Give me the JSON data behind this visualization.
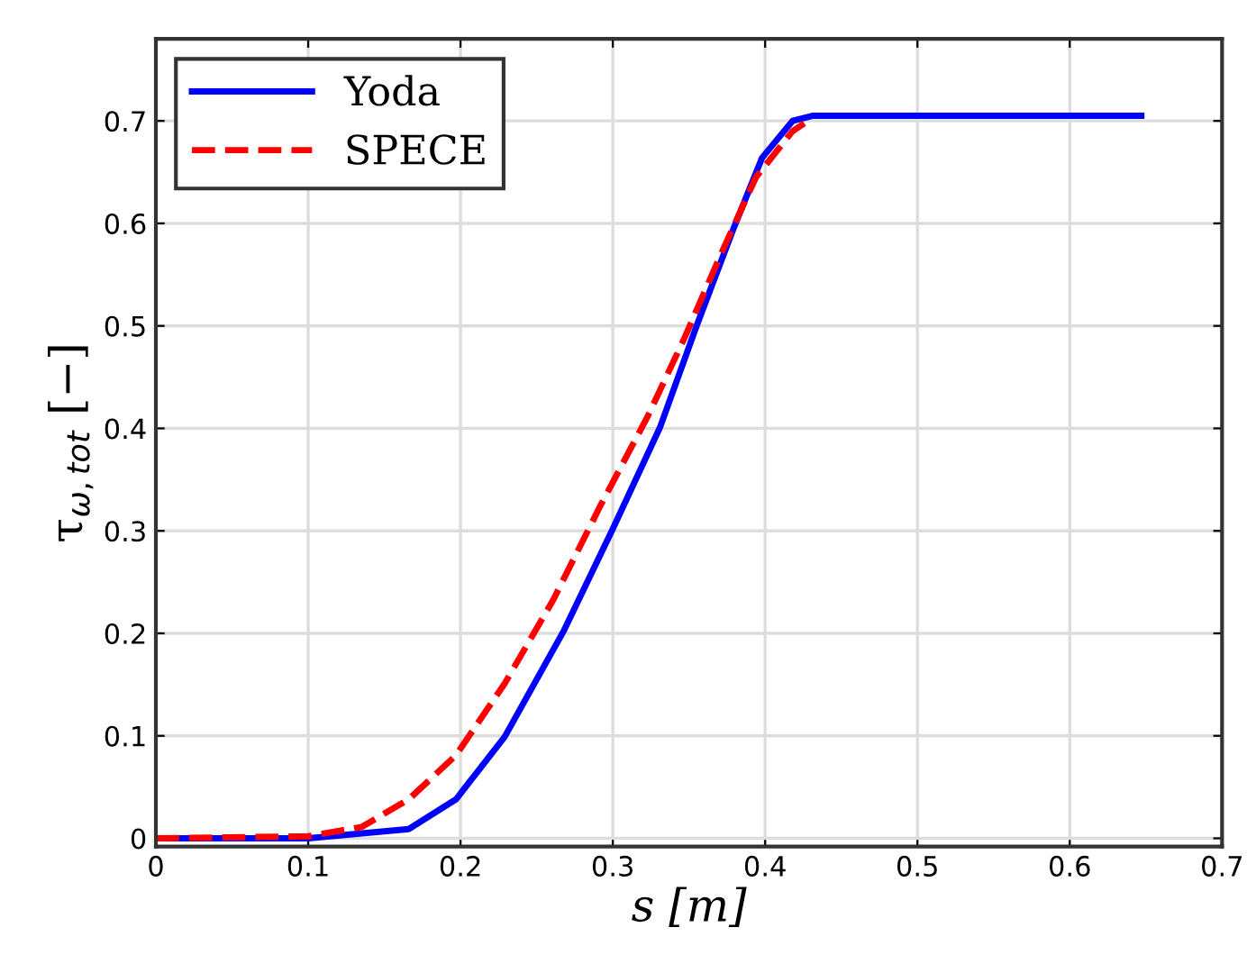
{
  "chart_data": {
    "type": "line",
    "xlabel": "s [m]",
    "ylabel": "τ$_{ω,tot}$ [−]",
    "series": [
      {
        "name": "Yoda",
        "color": "#0000ff",
        "line_style": "solid",
        "x": [
          0,
          0.1,
          0.166,
          0.197,
          0.229,
          0.268,
          0.3,
          0.331,
          0.355,
          0.379,
          0.398,
          0.418,
          0.431,
          0.647
        ],
        "values": [
          0,
          0,
          0.009,
          0.038,
          0.099,
          0.203,
          0.302,
          0.401,
          0.5,
          0.594,
          0.664,
          0.7,
          0.705,
          0.705
        ]
      },
      {
        "name": "SPECE",
        "color": "#ff0000",
        "line_style": "dashed",
        "x": [
          0,
          0.1,
          0.135,
          0.166,
          0.197,
          0.229,
          0.261,
          0.292,
          0.323,
          0.347,
          0.371,
          0.394,
          0.418,
          0.43
        ],
        "values": [
          0,
          0.002,
          0.011,
          0.038,
          0.081,
          0.151,
          0.233,
          0.325,
          0.412,
          0.488,
          0.57,
          0.645,
          0.69,
          0.702
        ]
      }
    ],
    "xlim": [
      0,
      0.7
    ],
    "xticks": [
      0,
      0.1,
      0.2,
      0.3,
      0.4,
      0.5,
      0.6,
      0.7
    ],
    "ylim": [
      -0.008,
      0.78
    ],
    "yticks": [
      0,
      0.1,
      0.2,
      0.3,
      0.4,
      0.5,
      0.6,
      0.7
    ],
    "grid": true,
    "legend": "top left"
  }
}
